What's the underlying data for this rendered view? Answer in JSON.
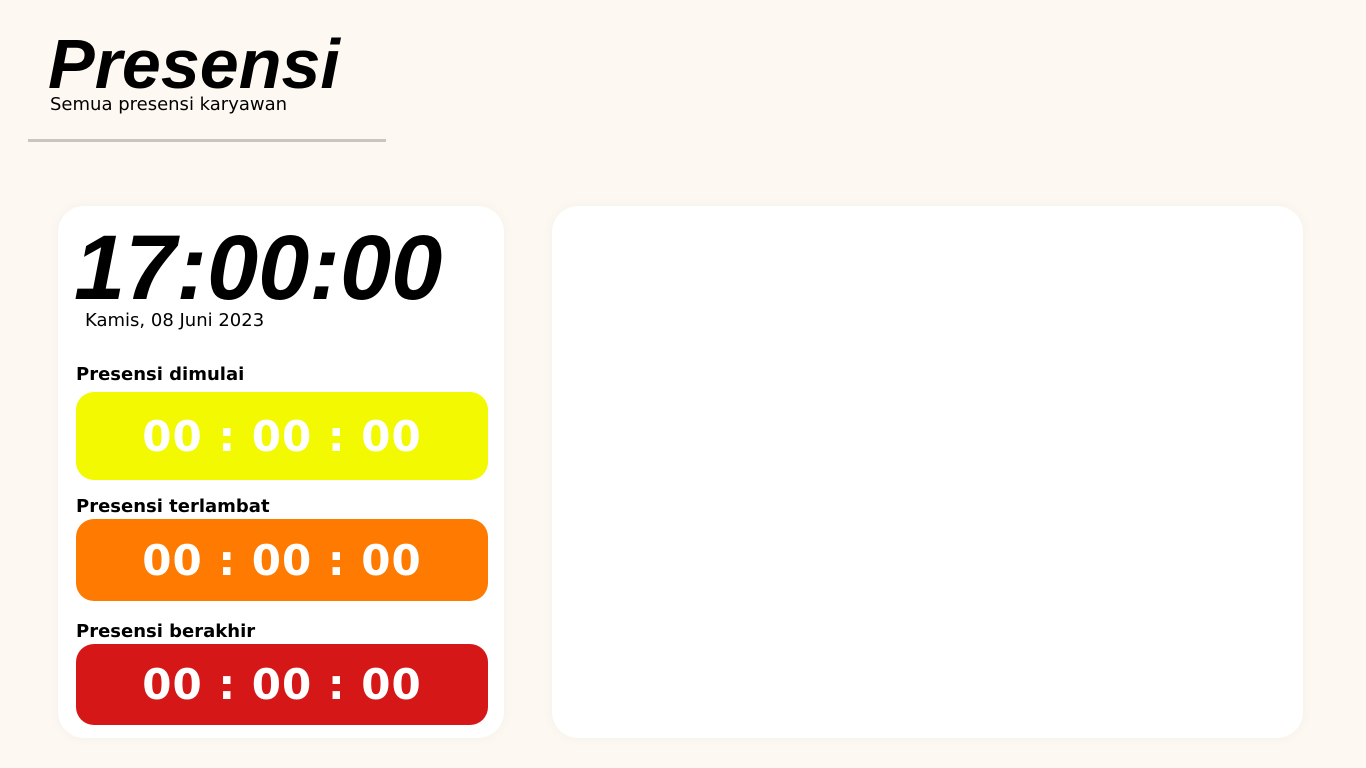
{
  "header": {
    "title": "Presensi",
    "subtitle": "Semua presensi karyawan"
  },
  "clock": {
    "time": "17:00:00",
    "date": "Kamis, 08 Juni 2023"
  },
  "timers": [
    {
      "label": "Presensi dimulai",
      "value": "00 : 00 : 00",
      "color": "#f2f900"
    },
    {
      "label": "Presensi terlambat",
      "value": "00 : 00 : 00",
      "color": "#ff7a00"
    },
    {
      "label": "Presensi berakhir",
      "value": "00 : 00 : 00",
      "color": "#d61717"
    }
  ]
}
